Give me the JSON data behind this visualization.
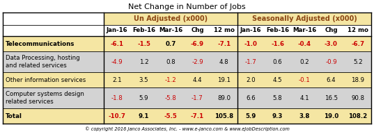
{
  "title": "Net Change in Number of Jobs",
  "footer": "© copyright 2016 Janco Associates, Inc. - www.e-janco.com & www.eJobDescription.com",
  "col_groups": [
    "Un Adjusted (x000)",
    "Seasonally Adjusted (x000)"
  ],
  "col_headers": [
    "Jan-16",
    "Feb-16",
    "Mar-16",
    "Chg",
    "12 mo",
    "Jan-16",
    "Feb-16",
    "Mar-16",
    "Chg",
    "12 mo"
  ],
  "row_labels": [
    "Telecommunications",
    "Data Processing, hosting\nand related services",
    "Other information services",
    "Computer systems design\nrelated services",
    "Total"
  ],
  "data": [
    [
      -6.1,
      -1.5,
      0.7,
      -6.9,
      -7.1,
      -1.0,
      -1.6,
      -0.4,
      -3.0,
      -6.7
    ],
    [
      -4.9,
      1.2,
      0.8,
      -2.9,
      4.8,
      -1.7,
      0.6,
      0.2,
      -0.9,
      5.2
    ],
    [
      2.1,
      3.5,
      -1.2,
      4.4,
      19.1,
      2.0,
      4.5,
      -0.1,
      6.4,
      18.9
    ],
    [
      -1.8,
      5.9,
      -5.8,
      -1.7,
      89.0,
      6.6,
      5.8,
      4.1,
      16.5,
      90.8
    ],
    [
      -10.7,
      9.1,
      -5.5,
      -7.1,
      105.8,
      5.9,
      9.3,
      3.8,
      19.0,
      108.2
    ]
  ],
  "row_bg_colors": [
    "#f5e6a3",
    "#d3d3d3",
    "#f5e6a3",
    "#d3d3d3",
    "#f5e6a3"
  ],
  "group_header_bg": "#f5e6a3",
  "col_header_bg": "#ffffff",
  "negative_color": "#cc0000",
  "positive_color": "#000000",
  "row_label_bold": [
    true,
    false,
    false,
    false,
    true
  ],
  "group_header_color": "#8B4513",
  "col_header_color": "#000000",
  "border_color": "#000000",
  "title_fontsize": 8.0,
  "group_header_fontsize": 7.0,
  "col_header_fontsize": 6.2,
  "data_fontsize": 6.2,
  "footer_fontsize": 4.8
}
